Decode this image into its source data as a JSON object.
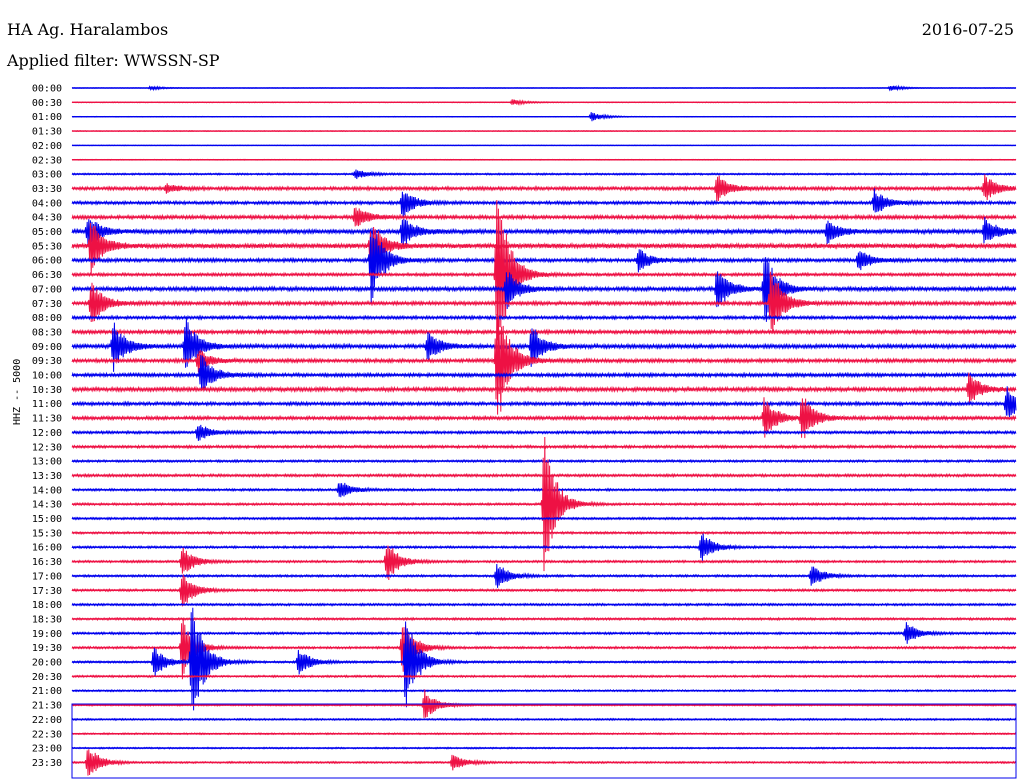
{
  "header": {
    "station": "HA Ag. Haralambos",
    "date": "2016-07-25",
    "filter": "Applied filter: WWSSN-SP",
    "channel": "HHZ -- 5000"
  },
  "colors": {
    "blue": "#0000ee",
    "red": "#ee1144",
    "frame": "#0000ee"
  },
  "chart_data": {
    "type": "helicorder",
    "title": "HA Ag. Haralambos",
    "ylabel": "HHZ -- 5000",
    "row_labels": [
      "00:00",
      "00:30",
      "01:00",
      "01:30",
      "02:00",
      "02:30",
      "03:00",
      "03:30",
      "04:00",
      "04:30",
      "05:00",
      "05:30",
      "06:00",
      "06:30",
      "07:00",
      "07:30",
      "08:00",
      "08:30",
      "09:00",
      "09:30",
      "10:00",
      "10:30",
      "11:00",
      "11:30",
      "12:00",
      "12:30",
      "13:00",
      "13:30",
      "14:00",
      "14:30",
      "15:00",
      "15:30",
      "16:00",
      "16:30",
      "17:00",
      "17:30",
      "18:00",
      "18:30",
      "19:00",
      "19:30",
      "20:00",
      "20:30",
      "21:00",
      "21:30",
      "22:00",
      "22:30",
      "23:00",
      "23:30"
    ],
    "row_colors": "alternating blue / red",
    "row_duration_minutes": 30,
    "noise_level": [
      0.3,
      0.4,
      0.3,
      0.4,
      0.3,
      0.4,
      0.8,
      1.5,
      1.4,
      1.6,
      2.0,
      2.2,
      1.6,
      1.3,
      1.8,
      1.6,
      1.4,
      1.6,
      1.8,
      1.6,
      1.6,
      1.8,
      1.5,
      1.5,
      1.2,
      1.2,
      1.0,
      1.2,
      1.0,
      1.0,
      1.0,
      1.0,
      1.0,
      1.0,
      1.0,
      1.0,
      1.0,
      1.0,
      1.0,
      1.0,
      0.9,
      0.9,
      0.8,
      0.8,
      0.8,
      0.7,
      0.7,
      0.8
    ],
    "events": [
      {
        "row": "00:00",
        "minute": 2.5,
        "amplitude": 2
      },
      {
        "row": "00:00",
        "minute": 26,
        "amplitude": 3
      },
      {
        "row": "00:30",
        "minute": 14,
        "amplitude": 3
      },
      {
        "row": "01:00",
        "minute": 16.5,
        "amplitude": 5
      },
      {
        "row": "03:00",
        "minute": 9,
        "amplitude": 5
      },
      {
        "row": "03:30",
        "minute": 3,
        "amplitude": 5
      },
      {
        "row": "03:30",
        "minute": 20.5,
        "amplitude": 14
      },
      {
        "row": "03:30",
        "minute": 29,
        "amplitude": 14
      },
      {
        "row": "04:00",
        "minute": 10.5,
        "amplitude": 16
      },
      {
        "row": "04:00",
        "minute": 25.5,
        "amplitude": 14
      },
      {
        "row": "04:30",
        "minute": 9,
        "amplitude": 12
      },
      {
        "row": "05:00",
        "minute": 0.5,
        "amplitude": 18
      },
      {
        "row": "05:00",
        "minute": 10.5,
        "amplitude": 16
      },
      {
        "row": "05:00",
        "minute": 24,
        "amplitude": 12
      },
      {
        "row": "05:00",
        "minute": 29,
        "amplitude": 14
      },
      {
        "row": "05:30",
        "minute": 0.6,
        "amplitude": 28
      },
      {
        "row": "05:30",
        "minute": 9.5,
        "amplitude": 26
      },
      {
        "row": "06:00",
        "minute": 9.5,
        "amplitude": 45
      },
      {
        "row": "06:00",
        "minute": 18,
        "amplitude": 12
      },
      {
        "row": "06:00",
        "minute": 25,
        "amplitude": 12
      },
      {
        "row": "06:30",
        "minute": 13.5,
        "amplitude": 100
      },
      {
        "row": "07:00",
        "minute": 13.8,
        "amplitude": 22
      },
      {
        "row": "07:00",
        "minute": 20.5,
        "amplitude": 24
      },
      {
        "row": "07:00",
        "minute": 22,
        "amplitude": 40
      },
      {
        "row": "07:30",
        "minute": 0.6,
        "amplitude": 24
      },
      {
        "row": "07:30",
        "minute": 22.2,
        "amplitude": 40
      },
      {
        "row": "09:00",
        "minute": 1.3,
        "amplitude": 26
      },
      {
        "row": "09:00",
        "minute": 3.6,
        "amplitude": 30
      },
      {
        "row": "09:00",
        "minute": 11.3,
        "amplitude": 16
      },
      {
        "row": "09:00",
        "minute": 14.6,
        "amplitude": 22
      },
      {
        "row": "09:30",
        "minute": 13.5,
        "amplitude": 72
      },
      {
        "row": "09:30",
        "minute": 4,
        "amplitude": 12
      },
      {
        "row": "10:00",
        "minute": 4.1,
        "amplitude": 22
      },
      {
        "row": "10:30",
        "minute": 28.5,
        "amplitude": 16
      },
      {
        "row": "11:00",
        "minute": 29.7,
        "amplitude": 18
      },
      {
        "row": "11:30",
        "minute": 22,
        "amplitude": 22
      },
      {
        "row": "11:30",
        "minute": 23.2,
        "amplitude": 26
      },
      {
        "row": "12:00",
        "minute": 4,
        "amplitude": 10
      },
      {
        "row": "14:00",
        "minute": 8.5,
        "amplitude": 10
      },
      {
        "row": "14:30",
        "minute": 15,
        "amplitude": 72
      },
      {
        "row": "16:00",
        "minute": 20,
        "amplitude": 16
      },
      {
        "row": "16:30",
        "minute": 3.5,
        "amplitude": 16
      },
      {
        "row": "16:30",
        "minute": 10,
        "amplitude": 22
      },
      {
        "row": "17:00",
        "minute": 13.5,
        "amplitude": 14
      },
      {
        "row": "17:00",
        "minute": 23.5,
        "amplitude": 12
      },
      {
        "row": "17:30",
        "minute": 3.5,
        "amplitude": 20
      },
      {
        "row": "19:00",
        "minute": 26.5,
        "amplitude": 12
      },
      {
        "row": "19:30",
        "minute": 3.5,
        "amplitude": 32
      },
      {
        "row": "19:30",
        "minute": 10.5,
        "amplitude": 32
      },
      {
        "row": "20:00",
        "minute": 2.6,
        "amplitude": 16
      },
      {
        "row": "20:00",
        "minute": 3.8,
        "amplitude": 68
      },
      {
        "row": "20:00",
        "minute": 7.2,
        "amplitude": 14
      },
      {
        "row": "20:00",
        "minute": 10.6,
        "amplitude": 50
      },
      {
        "row": "21:30",
        "minute": 11.2,
        "amplitude": 16
      },
      {
        "row": "23:30",
        "minute": 0.5,
        "amplitude": 18
      },
      {
        "row": "23:30",
        "minute": 12.1,
        "amplitude": 10
      }
    ]
  }
}
